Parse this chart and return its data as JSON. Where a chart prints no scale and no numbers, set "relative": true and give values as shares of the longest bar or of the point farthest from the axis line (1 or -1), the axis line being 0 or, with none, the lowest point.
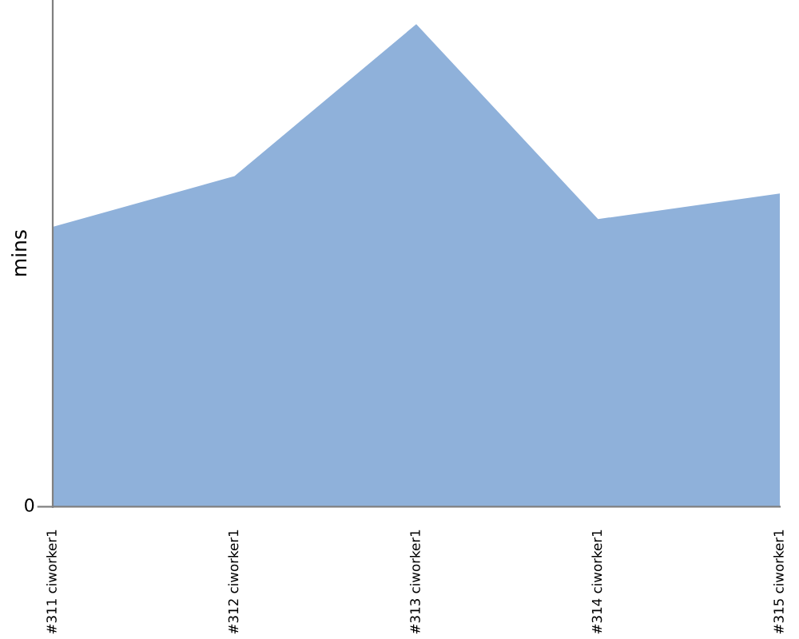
{
  "chart_data": {
    "type": "area",
    "relative": true,
    "ylabel": "mins",
    "categories": [
      "#311 ciworker1",
      "#312 ciworker1",
      "#313 ciworker1",
      "#314 ciworker1",
      "#315 ciworker1"
    ],
    "series": [
      {
        "color": "#8fb1da",
        "values": [
          0.58,
          0.685,
          1,
          0.596,
          0.649
        ]
      }
    ],
    "annotations": [
      "0"
    ],
    "grid": false
  }
}
